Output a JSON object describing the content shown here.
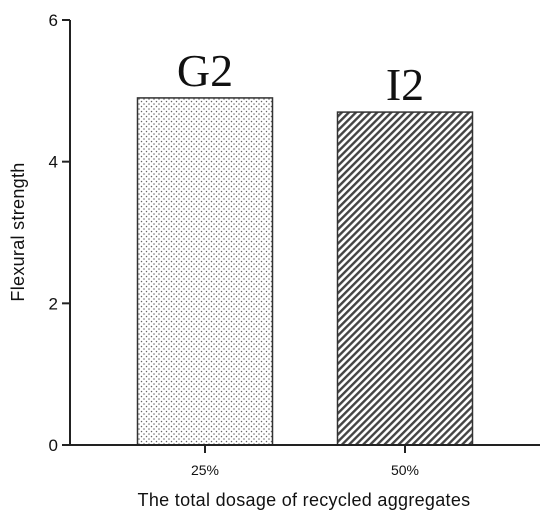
{
  "chart_data": {
    "type": "bar",
    "categories": [
      "25%",
      "50%"
    ],
    "values": [
      4.9,
      4.7
    ],
    "bar_labels": [
      "G2",
      "I2"
    ],
    "bar_patterns": [
      "dots",
      "diagonal-hatch"
    ],
    "xlabel": "The total dosage of recycled aggregates",
    "ylabel": "Flexural strength",
    "ylim": [
      0,
      6
    ],
    "yticks": [
      0,
      2,
      4,
      6
    ],
    "grid": false,
    "legend": "none",
    "colors": {
      "axis": "#222222",
      "bar_stroke": "#333333",
      "pattern": "#444444",
      "background": "#ffffff"
    }
  }
}
